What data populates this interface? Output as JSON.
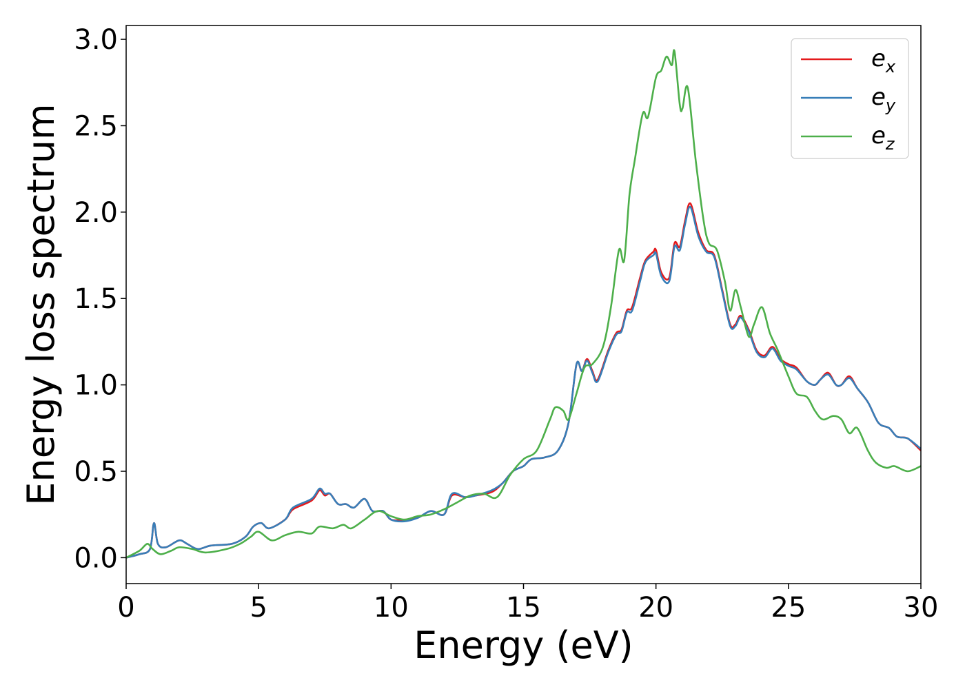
{
  "chart_data": {
    "type": "line",
    "xlabel": "Energy (eV)",
    "ylabel": "Energy loss spectrum",
    "xlim": [
      0,
      30
    ],
    "ylim": [
      -0.15,
      3.08
    ],
    "xticks": [
      "0",
      "5",
      "10",
      "15",
      "20",
      "25",
      "30"
    ],
    "yticks": [
      "0.0",
      "0.5",
      "1.0",
      "1.5",
      "2.0",
      "2.5",
      "3.0"
    ],
    "grid": false,
    "legend_position": "top-right",
    "series": [
      {
        "name": "e_x",
        "legend_main": "e",
        "legend_sub": "x",
        "color": "#e41a1c",
        "x": [
          0,
          0.5,
          0.9,
          1.05,
          1.2,
          1.5,
          2.0,
          2.3,
          2.7,
          3.2,
          4.0,
          4.5,
          4.8,
          5.1,
          5.4,
          6.0,
          6.3,
          7.0,
          7.3,
          7.5,
          7.7,
          8.0,
          8.3,
          8.6,
          9.0,
          9.3,
          9.7,
          10.0,
          10.5,
          11.0,
          11.5,
          12.0,
          12.3,
          12.8,
          13.2,
          13.8,
          14.2,
          14.6,
          15.0,
          15.3,
          15.8,
          16.3,
          16.7,
          17.0,
          17.2,
          17.4,
          17.6,
          17.8,
          18.2,
          18.5,
          18.7,
          18.9,
          19.1,
          19.4,
          19.6,
          19.9,
          20.0,
          20.2,
          20.5,
          20.7,
          20.9,
          21.1,
          21.3,
          21.6,
          21.9,
          22.2,
          22.5,
          22.8,
          23.0,
          23.2,
          23.5,
          23.8,
          24.1,
          24.4,
          24.7,
          25.0,
          25.3,
          25.7,
          26.0,
          26.2,
          26.5,
          26.8,
          27.0,
          27.3,
          27.6,
          28.0,
          28.4,
          28.8,
          29.1,
          29.5,
          30.0
        ],
        "y": [
          0.0,
          0.02,
          0.05,
          0.2,
          0.08,
          0.06,
          0.1,
          0.08,
          0.05,
          0.07,
          0.08,
          0.12,
          0.18,
          0.2,
          0.17,
          0.22,
          0.28,
          0.33,
          0.39,
          0.36,
          0.37,
          0.31,
          0.31,
          0.29,
          0.34,
          0.27,
          0.27,
          0.22,
          0.22,
          0.23,
          0.27,
          0.25,
          0.36,
          0.35,
          0.36,
          0.38,
          0.43,
          0.5,
          0.53,
          0.57,
          0.58,
          0.62,
          0.78,
          1.12,
          1.08,
          1.15,
          1.08,
          1.03,
          1.2,
          1.3,
          1.32,
          1.43,
          1.45,
          1.62,
          1.72,
          1.77,
          1.78,
          1.65,
          1.62,
          1.82,
          1.8,
          1.95,
          2.05,
          1.88,
          1.78,
          1.75,
          1.55,
          1.35,
          1.35,
          1.4,
          1.32,
          1.2,
          1.17,
          1.22,
          1.15,
          1.12,
          1.1,
          1.02,
          1.0,
          1.03,
          1.07,
          1.0,
          1.0,
          1.05,
          0.98,
          0.9,
          0.78,
          0.75,
          0.7,
          0.69,
          0.62
        ]
      },
      {
        "name": "e_y",
        "legend_main": "e",
        "legend_sub": "y",
        "color": "#377eb8",
        "x": [
          0,
          0.5,
          0.9,
          1.05,
          1.2,
          1.5,
          2.0,
          2.3,
          2.7,
          3.2,
          4.0,
          4.5,
          4.8,
          5.1,
          5.4,
          6.0,
          6.3,
          7.0,
          7.3,
          7.5,
          7.7,
          8.0,
          8.3,
          8.6,
          9.0,
          9.3,
          9.7,
          10.0,
          10.5,
          11.0,
          11.5,
          12.0,
          12.3,
          12.8,
          13.2,
          13.8,
          14.2,
          14.6,
          15.0,
          15.3,
          15.8,
          16.3,
          16.7,
          17.0,
          17.2,
          17.4,
          17.6,
          17.8,
          18.2,
          18.5,
          18.7,
          18.9,
          19.1,
          19.4,
          19.6,
          19.9,
          20.0,
          20.2,
          20.5,
          20.7,
          20.9,
          21.1,
          21.3,
          21.6,
          21.9,
          22.2,
          22.5,
          22.8,
          23.0,
          23.2,
          23.5,
          23.8,
          24.1,
          24.4,
          24.7,
          25.0,
          25.3,
          25.7,
          26.0,
          26.2,
          26.5,
          26.8,
          27.0,
          27.3,
          27.6,
          28.0,
          28.4,
          28.8,
          29.1,
          29.5,
          30.0
        ],
        "y": [
          0.0,
          0.02,
          0.05,
          0.2,
          0.08,
          0.06,
          0.1,
          0.08,
          0.05,
          0.07,
          0.08,
          0.12,
          0.18,
          0.2,
          0.17,
          0.22,
          0.29,
          0.34,
          0.4,
          0.37,
          0.37,
          0.31,
          0.31,
          0.29,
          0.34,
          0.27,
          0.27,
          0.22,
          0.21,
          0.23,
          0.27,
          0.25,
          0.37,
          0.35,
          0.36,
          0.39,
          0.43,
          0.5,
          0.53,
          0.57,
          0.58,
          0.62,
          0.78,
          1.12,
          1.08,
          1.14,
          1.07,
          1.02,
          1.19,
          1.29,
          1.31,
          1.42,
          1.43,
          1.6,
          1.71,
          1.75,
          1.76,
          1.63,
          1.6,
          1.8,
          1.78,
          1.93,
          2.03,
          1.86,
          1.77,
          1.74,
          1.54,
          1.34,
          1.34,
          1.39,
          1.31,
          1.19,
          1.16,
          1.21,
          1.14,
          1.11,
          1.09,
          1.02,
          1.0,
          1.03,
          1.06,
          1.0,
          1.0,
          1.04,
          0.98,
          0.9,
          0.78,
          0.75,
          0.7,
          0.69,
          0.63
        ]
      },
      {
        "name": "e_z",
        "legend_main": "e",
        "legend_sub": "z",
        "color": "#4daf4a",
        "x": [
          0,
          0.5,
          0.8,
          1.0,
          1.3,
          1.7,
          2.0,
          2.5,
          3.0,
          3.8,
          4.3,
          4.7,
          5.0,
          5.5,
          6.0,
          6.5,
          7.0,
          7.3,
          7.8,
          8.2,
          8.5,
          9.0,
          9.5,
          10.0,
          10.5,
          11.0,
          11.5,
          12.0,
          12.5,
          13.0,
          13.5,
          14.0,
          14.5,
          15.0,
          15.5,
          16.0,
          16.2,
          16.5,
          16.7,
          17.0,
          17.3,
          17.6,
          18.0,
          18.3,
          18.6,
          18.8,
          19.0,
          19.2,
          19.5,
          19.7,
          20.0,
          20.2,
          20.4,
          20.6,
          20.7,
          20.9,
          21.0,
          21.2,
          21.5,
          21.8,
          22.0,
          22.3,
          22.6,
          22.8,
          23.0,
          23.2,
          23.5,
          23.7,
          24.0,
          24.3,
          24.6,
          25.0,
          25.3,
          25.7,
          26.0,
          26.3,
          26.7,
          27.0,
          27.3,
          27.6,
          28.0,
          28.3,
          28.7,
          29.0,
          29.5,
          30.0
        ],
        "y": [
          0.0,
          0.04,
          0.08,
          0.05,
          0.02,
          0.04,
          0.06,
          0.05,
          0.03,
          0.05,
          0.08,
          0.12,
          0.15,
          0.1,
          0.13,
          0.15,
          0.14,
          0.18,
          0.17,
          0.19,
          0.17,
          0.22,
          0.27,
          0.24,
          0.22,
          0.24,
          0.25,
          0.28,
          0.32,
          0.36,
          0.37,
          0.35,
          0.48,
          0.57,
          0.62,
          0.8,
          0.87,
          0.85,
          0.8,
          0.95,
          1.1,
          1.12,
          1.22,
          1.45,
          1.78,
          1.72,
          2.1,
          2.3,
          2.57,
          2.55,
          2.78,
          2.82,
          2.9,
          2.85,
          2.93,
          2.62,
          2.6,
          2.72,
          2.3,
          1.95,
          1.82,
          1.78,
          1.6,
          1.43,
          1.55,
          1.45,
          1.28,
          1.35,
          1.45,
          1.3,
          1.2,
          1.05,
          0.95,
          0.93,
          0.85,
          0.8,
          0.82,
          0.8,
          0.72,
          0.75,
          0.62,
          0.55,
          0.52,
          0.53,
          0.5,
          0.53
        ]
      }
    ]
  }
}
